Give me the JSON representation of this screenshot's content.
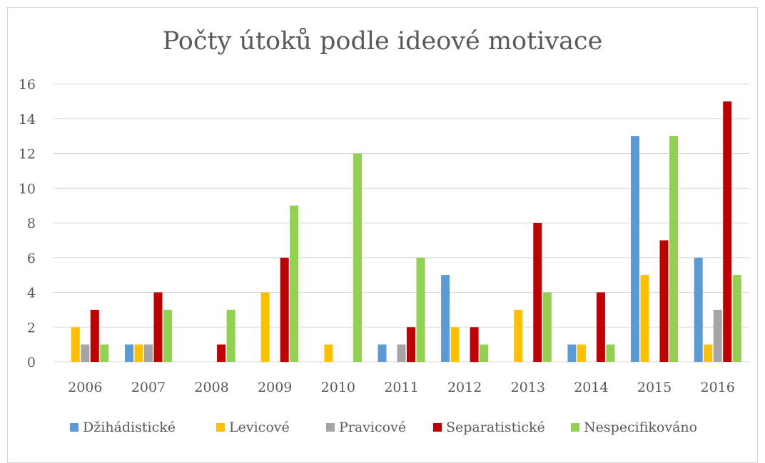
{
  "chart_data": {
    "type": "bar",
    "title": "Počty útoků podle ideové motivace",
    "categories": [
      "2006",
      "2007",
      "2008",
      "2009",
      "2010",
      "2011",
      "2012",
      "2013",
      "2014",
      "2015",
      "2016"
    ],
    "ylim": [
      0,
      16
    ],
    "yticks": [
      0,
      2,
      4,
      6,
      8,
      10,
      12,
      14,
      16
    ],
    "grid": true,
    "legend_position": "bottom",
    "series": [
      {
        "name": "Džihádistické",
        "color": "#5b9bd5",
        "values": [
          0,
          1,
          0,
          0,
          0,
          1,
          5,
          0,
          1,
          13,
          6
        ]
      },
      {
        "name": "Levicové",
        "color": "#ffc000",
        "values": [
          2,
          1,
          0,
          4,
          1,
          0,
          2,
          3,
          1,
          5,
          1
        ]
      },
      {
        "name": "Pravicové",
        "color": "#a5a5a5",
        "values": [
          1,
          1,
          0,
          0,
          0,
          1,
          0,
          0,
          0,
          0,
          3
        ]
      },
      {
        "name": "Separatistické",
        "color": "#c00000",
        "values": [
          3,
          4,
          1,
          6,
          0,
          2,
          2,
          8,
          4,
          7,
          15
        ]
      },
      {
        "name": "Nespecifikováno",
        "color": "#92d050",
        "values": [
          1,
          3,
          3,
          9,
          12,
          6,
          1,
          4,
          1,
          13,
          5
        ]
      }
    ]
  }
}
